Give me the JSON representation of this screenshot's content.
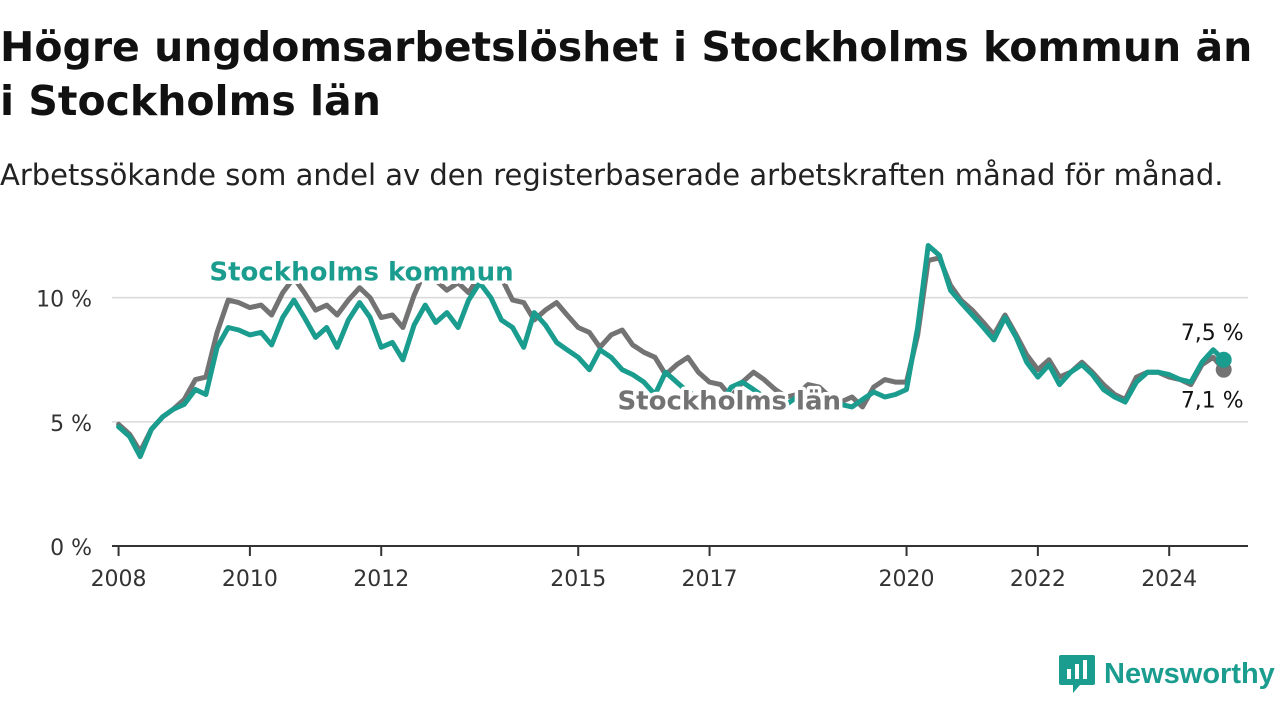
{
  "title": "Högre ungdomsarbetslöshet i Stockholms kommun än i Stockholms län",
  "subtitle": "Arbetssökande som andel av den registerbaserade arbetskraften månad för månad.",
  "brand": {
    "name": "Newsworthy"
  },
  "colors": {
    "kommun": "#1a9c8e",
    "lan": "#737373",
    "grid": "#d9d9d9",
    "axis": "#333333"
  },
  "chart_data": {
    "type": "line",
    "title": "Högre ungdomsarbetslöshet i Stockholms kommun än i Stockholms län",
    "subtitle": "Arbetssökande som andel av den registerbaserade arbetskraften månad för månad.",
    "xlabel": "",
    "ylabel": "",
    "ylim": [
      0,
      12
    ],
    "y_ticks": [
      {
        "value": 0,
        "label": "0 %"
      },
      {
        "value": 5,
        "label": "5 %"
      },
      {
        "value": 10,
        "label": "10 %"
      }
    ],
    "x_range": [
      2007.9,
      2025.2
    ],
    "x_ticks": [
      {
        "value": 2008,
        "label": "2008"
      },
      {
        "value": 2010,
        "label": "2010"
      },
      {
        "value": 2012,
        "label": "2012"
      },
      {
        "value": 2015,
        "label": "2015"
      },
      {
        "value": 2017,
        "label": "2017"
      },
      {
        "value": 2020,
        "label": "2020"
      },
      {
        "value": 2022,
        "label": "2022"
      },
      {
        "value": 2024,
        "label": "2024"
      }
    ],
    "grid": true,
    "legend": "direct labels",
    "series": [
      {
        "name": "Stockholms län",
        "color": "#737373",
        "end_label": "7,1 %",
        "points": [
          [
            2008.0,
            4.9
          ],
          [
            2008.17,
            4.5
          ],
          [
            2008.33,
            3.8
          ],
          [
            2008.5,
            4.7
          ],
          [
            2008.67,
            5.2
          ],
          [
            2008.83,
            5.5
          ],
          [
            2009.0,
            5.9
          ],
          [
            2009.17,
            6.7
          ],
          [
            2009.33,
            6.8
          ],
          [
            2009.5,
            8.6
          ],
          [
            2009.67,
            9.9
          ],
          [
            2009.83,
            9.8
          ],
          [
            2010.0,
            9.6
          ],
          [
            2010.17,
            9.7
          ],
          [
            2010.33,
            9.3
          ],
          [
            2010.5,
            10.2
          ],
          [
            2010.67,
            10.8
          ],
          [
            2010.83,
            10.2
          ],
          [
            2011.0,
            9.5
          ],
          [
            2011.17,
            9.7
          ],
          [
            2011.33,
            9.3
          ],
          [
            2011.5,
            9.9
          ],
          [
            2011.67,
            10.4
          ],
          [
            2011.83,
            10.0
          ],
          [
            2012.0,
            9.2
          ],
          [
            2012.17,
            9.3
          ],
          [
            2012.33,
            8.8
          ],
          [
            2012.5,
            10.1
          ],
          [
            2012.67,
            11.1
          ],
          [
            2012.83,
            10.7
          ],
          [
            2013.0,
            10.3
          ],
          [
            2013.17,
            10.6
          ],
          [
            2013.33,
            10.2
          ],
          [
            2013.5,
            10.9
          ],
          [
            2013.67,
            11.3
          ],
          [
            2013.83,
            10.8
          ],
          [
            2014.0,
            9.9
          ],
          [
            2014.17,
            9.8
          ],
          [
            2014.33,
            9.1
          ],
          [
            2014.5,
            9.5
          ],
          [
            2014.67,
            9.8
          ],
          [
            2014.83,
            9.3
          ],
          [
            2015.0,
            8.8
          ],
          [
            2015.17,
            8.6
          ],
          [
            2015.33,
            8.0
          ],
          [
            2015.5,
            8.5
          ],
          [
            2015.67,
            8.7
          ],
          [
            2015.83,
            8.1
          ],
          [
            2016.0,
            7.8
          ],
          [
            2016.17,
            7.6
          ],
          [
            2016.33,
            6.9
          ],
          [
            2016.5,
            7.3
          ],
          [
            2016.67,
            7.6
          ],
          [
            2016.83,
            7.0
          ],
          [
            2017.0,
            6.6
          ],
          [
            2017.17,
            6.5
          ],
          [
            2017.33,
            6.0
          ],
          [
            2017.5,
            6.6
          ],
          [
            2017.67,
            7.0
          ],
          [
            2017.83,
            6.7
          ],
          [
            2018.0,
            6.3
          ],
          [
            2018.17,
            6.0
          ],
          [
            2018.33,
            6.1
          ],
          [
            2018.5,
            6.5
          ],
          [
            2018.67,
            6.4
          ],
          [
            2018.83,
            6.0
          ],
          [
            2019.0,
            5.8
          ],
          [
            2019.17,
            6.0
          ],
          [
            2019.33,
            5.6
          ],
          [
            2019.5,
            6.4
          ],
          [
            2019.67,
            6.7
          ],
          [
            2019.83,
            6.6
          ],
          [
            2020.0,
            6.6
          ],
          [
            2020.17,
            8.5
          ],
          [
            2020.33,
            11.5
          ],
          [
            2020.5,
            11.6
          ],
          [
            2020.67,
            10.5
          ],
          [
            2020.83,
            9.9
          ],
          [
            2021.0,
            9.5
          ],
          [
            2021.17,
            9.0
          ],
          [
            2021.33,
            8.5
          ],
          [
            2021.5,
            9.3
          ],
          [
            2021.67,
            8.5
          ],
          [
            2021.83,
            7.7
          ],
          [
            2022.0,
            7.1
          ],
          [
            2022.17,
            7.5
          ],
          [
            2022.33,
            6.8
          ],
          [
            2022.5,
            7.0
          ],
          [
            2022.67,
            7.4
          ],
          [
            2022.83,
            7.0
          ],
          [
            2023.0,
            6.5
          ],
          [
            2023.17,
            6.1
          ],
          [
            2023.33,
            5.9
          ],
          [
            2023.5,
            6.8
          ],
          [
            2023.67,
            7.0
          ],
          [
            2023.83,
            7.0
          ],
          [
            2024.0,
            6.8
          ],
          [
            2024.17,
            6.7
          ],
          [
            2024.33,
            6.5
          ],
          [
            2024.5,
            7.3
          ],
          [
            2024.67,
            7.6
          ],
          [
            2024.83,
            7.1
          ]
        ]
      },
      {
        "name": "Stockholms kommun",
        "color": "#1a9c8e",
        "end_label": "7,5 %",
        "points": [
          [
            2008.0,
            4.8
          ],
          [
            2008.17,
            4.4
          ],
          [
            2008.33,
            3.6
          ],
          [
            2008.5,
            4.7
          ],
          [
            2008.67,
            5.2
          ],
          [
            2008.83,
            5.5
          ],
          [
            2009.0,
            5.7
          ],
          [
            2009.17,
            6.3
          ],
          [
            2009.33,
            6.1
          ],
          [
            2009.5,
            8.0
          ],
          [
            2009.67,
            8.8
          ],
          [
            2009.83,
            8.7
          ],
          [
            2010.0,
            8.5
          ],
          [
            2010.17,
            8.6
          ],
          [
            2010.33,
            8.1
          ],
          [
            2010.5,
            9.2
          ],
          [
            2010.67,
            9.9
          ],
          [
            2010.83,
            9.2
          ],
          [
            2011.0,
            8.4
          ],
          [
            2011.17,
            8.8
          ],
          [
            2011.33,
            8.0
          ],
          [
            2011.5,
            9.1
          ],
          [
            2011.67,
            9.8
          ],
          [
            2011.83,
            9.2
          ],
          [
            2012.0,
            8.0
          ],
          [
            2012.17,
            8.2
          ],
          [
            2012.33,
            7.5
          ],
          [
            2012.5,
            8.9
          ],
          [
            2012.67,
            9.7
          ],
          [
            2012.83,
            9.0
          ],
          [
            2013.0,
            9.4
          ],
          [
            2013.17,
            8.8
          ],
          [
            2013.33,
            9.9
          ],
          [
            2013.5,
            10.6
          ],
          [
            2013.67,
            10.0
          ],
          [
            2013.83,
            9.1
          ],
          [
            2014.0,
            8.8
          ],
          [
            2014.17,
            8.0
          ],
          [
            2014.33,
            9.4
          ],
          [
            2014.5,
            8.9
          ],
          [
            2014.67,
            8.2
          ],
          [
            2014.83,
            7.9
          ],
          [
            2015.0,
            7.6
          ],
          [
            2015.17,
            7.1
          ],
          [
            2015.33,
            7.9
          ],
          [
            2015.5,
            7.6
          ],
          [
            2015.67,
            7.1
          ],
          [
            2015.83,
            6.9
          ],
          [
            2016.0,
            6.6
          ],
          [
            2016.17,
            6.1
          ],
          [
            2016.33,
            7.0
          ],
          [
            2016.5,
            6.6
          ],
          [
            2016.67,
            6.2
          ],
          [
            2016.83,
            6.0
          ],
          [
            2017.0,
            5.9
          ],
          [
            2017.17,
            5.7
          ],
          [
            2017.33,
            6.4
          ],
          [
            2017.5,
            6.6
          ],
          [
            2017.67,
            6.3
          ],
          [
            2017.83,
            6.0
          ],
          [
            2018.0,
            5.8
          ],
          [
            2018.17,
            5.7
          ],
          [
            2018.33,
            6.0
          ],
          [
            2018.5,
            5.7
          ],
          [
            2018.67,
            5.6
          ],
          [
            2018.83,
            5.6
          ],
          [
            2019.0,
            5.7
          ],
          [
            2019.17,
            5.6
          ],
          [
            2019.33,
            5.9
          ],
          [
            2019.5,
            6.2
          ],
          [
            2019.67,
            6.0
          ],
          [
            2019.83,
            6.1
          ],
          [
            2020.0,
            6.3
          ],
          [
            2020.17,
            8.8
          ],
          [
            2020.33,
            12.1
          ],
          [
            2020.5,
            11.7
          ],
          [
            2020.67,
            10.3
          ],
          [
            2020.83,
            9.8
          ],
          [
            2021.0,
            9.3
          ],
          [
            2021.17,
            8.8
          ],
          [
            2021.33,
            8.3
          ],
          [
            2021.5,
            9.2
          ],
          [
            2021.67,
            8.4
          ],
          [
            2021.83,
            7.4
          ],
          [
            2022.0,
            6.8
          ],
          [
            2022.17,
            7.3
          ],
          [
            2022.33,
            6.5
          ],
          [
            2022.5,
            7.0
          ],
          [
            2022.67,
            7.3
          ],
          [
            2022.83,
            6.9
          ],
          [
            2023.0,
            6.3
          ],
          [
            2023.17,
            6.0
          ],
          [
            2023.33,
            5.8
          ],
          [
            2023.5,
            6.6
          ],
          [
            2023.67,
            7.0
          ],
          [
            2023.83,
            7.0
          ],
          [
            2024.0,
            6.9
          ],
          [
            2024.17,
            6.7
          ],
          [
            2024.33,
            6.6
          ],
          [
            2024.5,
            7.4
          ],
          [
            2024.67,
            7.9
          ],
          [
            2024.83,
            7.5
          ]
        ]
      }
    ],
    "annotations": [
      {
        "text": "Stockholms kommun",
        "series": "Stockholms kommun",
        "anchor": [
          2011.7,
          10.7
        ]
      },
      {
        "text": "Stockholms län",
        "series": "Stockholms län",
        "anchor": [
          2017.3,
          5.5
        ]
      }
    ]
  }
}
